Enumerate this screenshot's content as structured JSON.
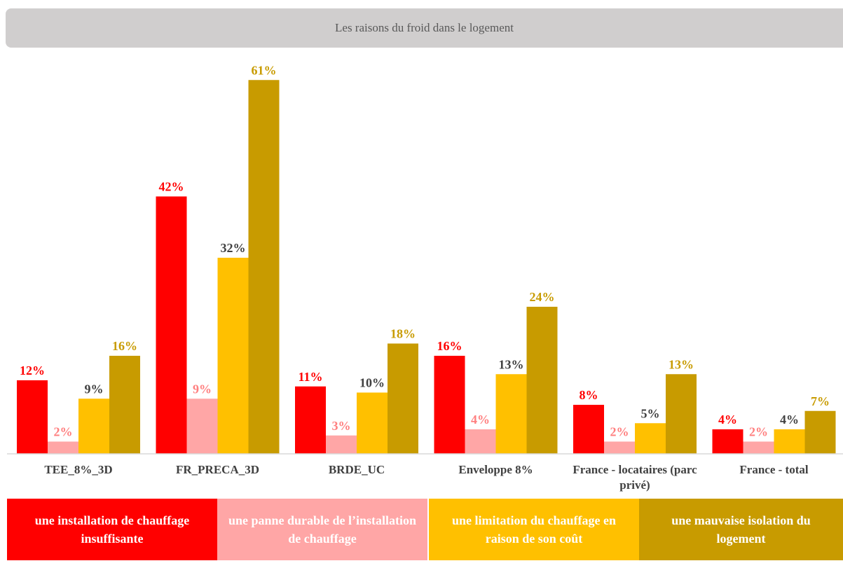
{
  "chart_data": {
    "type": "bar",
    "title": "Les raisons du froid dans le logement",
    "categories": [
      "TEE_8%_3D",
      "FR_PRECA_3D",
      "BRDE_UC",
      "Enveloppe 8%",
      "France - locataires (parc privé)",
      "France - total"
    ],
    "series": [
      {
        "name": "une installation de chauffage insuffisante",
        "color": "#ff0000",
        "label_color": "#ff0000",
        "values": [
          12,
          42,
          11,
          16,
          8,
          4
        ],
        "value_labels": [
          "12%",
          "42%",
          "11%",
          "16%",
          "8%",
          "4%"
        ]
      },
      {
        "name": "une panne durable de l’installation de chauffage",
        "color": "#ffa6a6",
        "label_color": "#ff7f7f",
        "values": [
          2,
          9,
          3,
          4,
          2,
          2
        ],
        "value_labels": [
          "2%",
          "9%",
          "3%",
          "4%",
          "2%",
          "2%"
        ]
      },
      {
        "name": "une limitation du chauffage en raison de son coût",
        "color": "#ffc000",
        "label_color": "#404040",
        "values": [
          9,
          32,
          10,
          13,
          5,
          4
        ],
        "value_labels": [
          "9%",
          "32%",
          "10%",
          "13%",
          "5%",
          "4%"
        ]
      },
      {
        "name": "une mauvaise isolation du logement",
        "color": "#c89b00",
        "label_color": "#c89b00",
        "values": [
          16,
          61,
          18,
          24,
          13,
          7
        ],
        "value_labels": [
          "16%",
          "61%",
          "18%",
          "24%",
          "13%",
          "7%"
        ]
      }
    ]
  }
}
